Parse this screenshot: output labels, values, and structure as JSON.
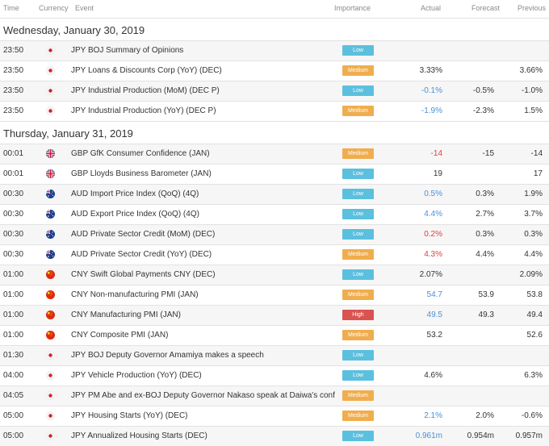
{
  "columns": {
    "time": "Time",
    "currency": "Currency",
    "event": "Event",
    "importance": "Importance",
    "actual": "Actual",
    "forecast": "Forecast",
    "previous": "Previous"
  },
  "importance_colors": {
    "Low": "#5bc0de",
    "Medium": "#f0ad4e",
    "High": "#d9534f"
  },
  "value_colors": {
    "positive": "#4a90d9",
    "negative": "#e04040",
    "neutral": "#333333"
  },
  "groups": [
    {
      "date": "Wednesday, January 30, 2019",
      "events": [
        {
          "time": "23:50",
          "currency": "JPY",
          "event": "JPY BOJ Summary of Opinions",
          "importance": "Low",
          "actual": "",
          "actual_tone": "neutral",
          "forecast": "",
          "previous": "",
          "highlight": true
        },
        {
          "time": "23:50",
          "currency": "JPY",
          "event": "JPY Loans & Discounts Corp (YoY) (DEC)",
          "importance": "Medium",
          "actual": "3.33%",
          "actual_tone": "neutral",
          "forecast": "",
          "previous": "3.66%",
          "highlight": false
        },
        {
          "time": "23:50",
          "currency": "JPY",
          "event": "JPY Industrial Production (MoM) (DEC P)",
          "importance": "Low",
          "actual": "-0.1%",
          "actual_tone": "positive",
          "forecast": "-0.5%",
          "previous": "-1.0%",
          "highlight": true
        },
        {
          "time": "23:50",
          "currency": "JPY",
          "event": "JPY Industrial Production (YoY) (DEC P)",
          "importance": "Medium",
          "actual": "-1.9%",
          "actual_tone": "positive",
          "forecast": "-2.3%",
          "previous": "1.5%",
          "highlight": false
        }
      ]
    },
    {
      "date": "Thursday, January 31, 2019",
      "events": [
        {
          "time": "00:01",
          "currency": "GBP",
          "event": "GBP GfK Consumer Confidence (JAN)",
          "importance": "Medium",
          "actual": "-14",
          "actual_tone": "negative",
          "forecast": "-15",
          "previous": "-14",
          "highlight": true
        },
        {
          "time": "00:01",
          "currency": "GBP",
          "event": "GBP Lloyds Business Barometer (JAN)",
          "importance": "Low",
          "actual": "19",
          "actual_tone": "neutral",
          "forecast": "",
          "previous": "17",
          "highlight": false
        },
        {
          "time": "00:30",
          "currency": "AUD",
          "event": "AUD Import Price Index (QoQ) (4Q)",
          "importance": "Low",
          "actual": "0.5%",
          "actual_tone": "positive",
          "forecast": "0.3%",
          "previous": "1.9%",
          "highlight": true
        },
        {
          "time": "00:30",
          "currency": "AUD",
          "event": "AUD Export Price Index (QoQ) (4Q)",
          "importance": "Low",
          "actual": "4.4%",
          "actual_tone": "positive",
          "forecast": "2.7%",
          "previous": "3.7%",
          "highlight": false
        },
        {
          "time": "00:30",
          "currency": "AUD",
          "event": "AUD Private Sector Credit (MoM) (DEC)",
          "importance": "Low",
          "actual": "0.2%",
          "actual_tone": "negative",
          "forecast": "0.3%",
          "previous": "0.3%",
          "highlight": true
        },
        {
          "time": "00:30",
          "currency": "AUD",
          "event": "AUD Private Sector Credit (YoY) (DEC)",
          "importance": "Medium",
          "actual": "4.3%",
          "actual_tone": "negative",
          "forecast": "4.4%",
          "previous": "4.4%",
          "highlight": false
        },
        {
          "time": "01:00",
          "currency": "CNY",
          "event": "CNY Swift Global Payments CNY (DEC)",
          "importance": "Low",
          "actual": "2.07%",
          "actual_tone": "neutral",
          "forecast": "",
          "previous": "2.09%",
          "highlight": true
        },
        {
          "time": "01:00",
          "currency": "CNY",
          "event": "CNY Non-manufacturing PMI (JAN)",
          "importance": "Medium",
          "actual": "54.7",
          "actual_tone": "positive",
          "forecast": "53.9",
          "previous": "53.8",
          "highlight": false
        },
        {
          "time": "01:00",
          "currency": "CNY",
          "event": "CNY Manufacturing PMI (JAN)",
          "importance": "High",
          "actual": "49.5",
          "actual_tone": "positive",
          "forecast": "49.3",
          "previous": "49.4",
          "highlight": true
        },
        {
          "time": "01:00",
          "currency": "CNY",
          "event": "CNY Composite PMI (JAN)",
          "importance": "Medium",
          "actual": "53.2",
          "actual_tone": "neutral",
          "forecast": "",
          "previous": "52.6",
          "highlight": false
        },
        {
          "time": "01:30",
          "currency": "JPY",
          "event": "JPY BOJ Deputy Governor Amamiya makes a speech",
          "importance": "Low",
          "actual": "",
          "actual_tone": "neutral",
          "forecast": "",
          "previous": "",
          "highlight": true
        },
        {
          "time": "04:00",
          "currency": "JPY",
          "event": "JPY Vehicle Production (YoY) (DEC)",
          "importance": "Low",
          "actual": "4.6%",
          "actual_tone": "neutral",
          "forecast": "",
          "previous": "6.3%",
          "highlight": false
        },
        {
          "time": "04:05",
          "currency": "JPY",
          "event": "JPY PM Abe and ex-BOJ Deputy Governor Nakaso speak at Daiwa's conf",
          "importance": "Medium",
          "actual": "",
          "actual_tone": "neutral",
          "forecast": "",
          "previous": "",
          "highlight": true
        },
        {
          "time": "05:00",
          "currency": "JPY",
          "event": "JPY Housing Starts (YoY) (DEC)",
          "importance": "Medium",
          "actual": "2.1%",
          "actual_tone": "positive",
          "forecast": "2.0%",
          "previous": "-0.6%",
          "highlight": false
        },
        {
          "time": "05:00",
          "currency": "JPY",
          "event": "JPY Annualized Housing Starts (DEC)",
          "importance": "Low",
          "actual": "0.961m",
          "actual_tone": "positive",
          "forecast": "0.954m",
          "previous": "0.957m",
          "highlight": true
        }
      ]
    }
  ]
}
